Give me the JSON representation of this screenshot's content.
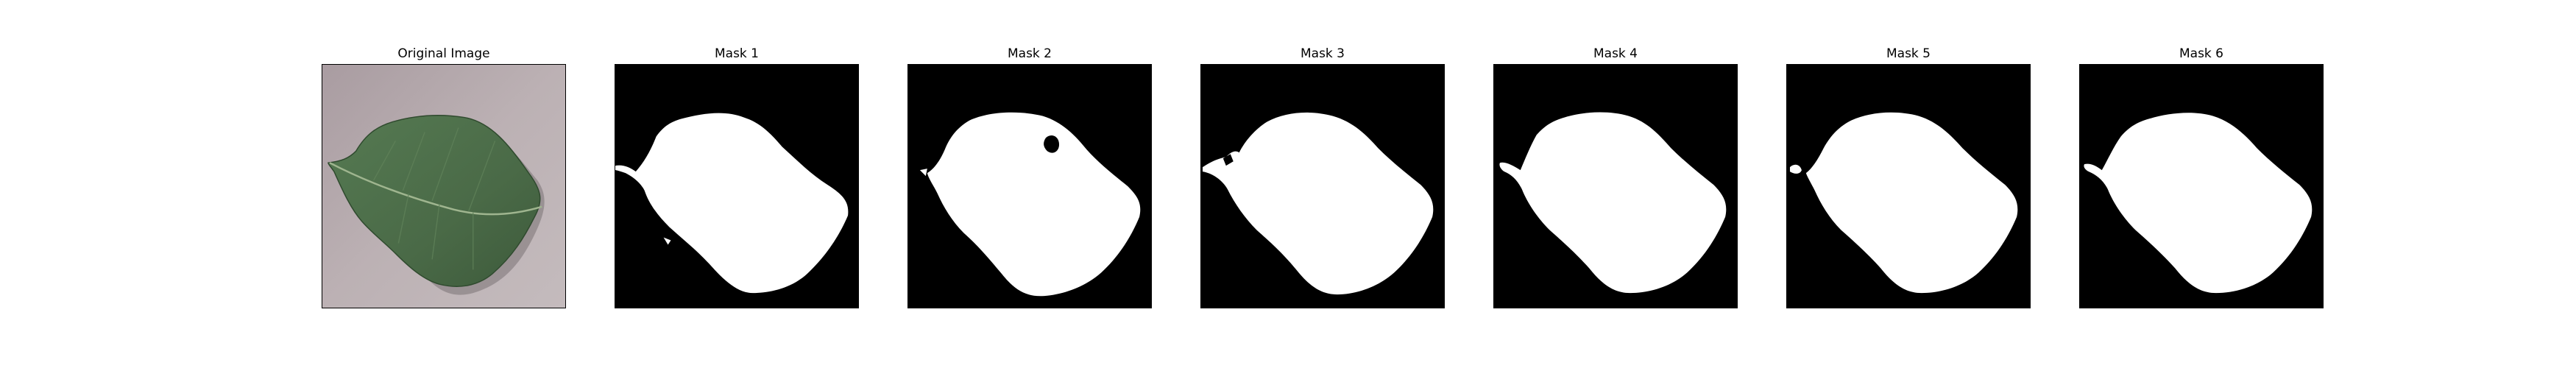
{
  "figure": {
    "panels": [
      {
        "title": "Original Image"
      },
      {
        "title": "Mask 1"
      },
      {
        "title": "Mask 2"
      },
      {
        "title": "Mask 3"
      },
      {
        "title": "Mask 4"
      },
      {
        "title": "Mask 5"
      },
      {
        "title": "Mask 6"
      }
    ]
  },
  "colors": {
    "mask_background": "#000000",
    "mask_foreground": "#ffffff",
    "leaf": "#4f6f4b",
    "surface": "#b5aaad"
  }
}
